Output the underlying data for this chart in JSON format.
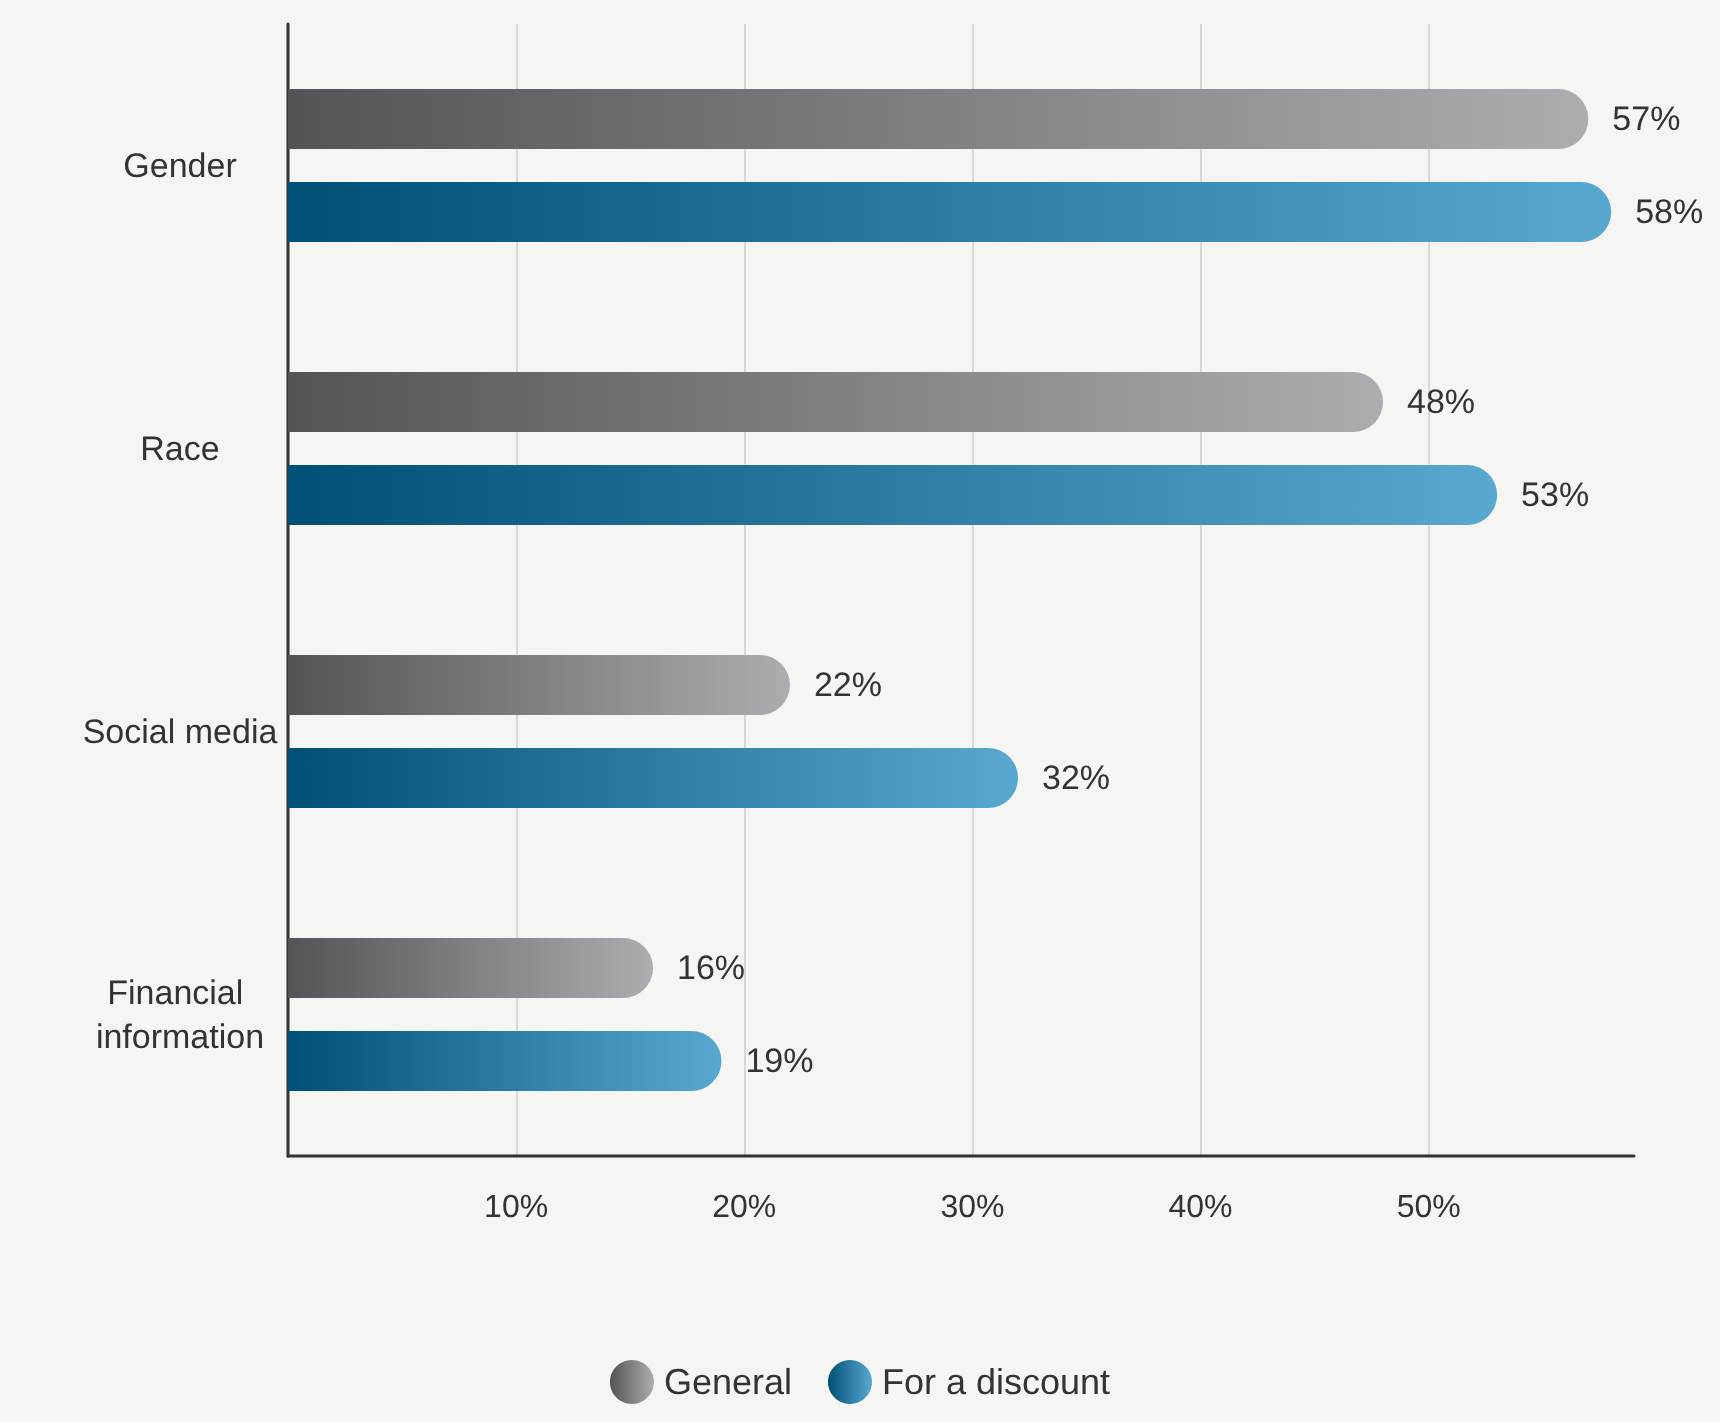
{
  "chart_data": {
    "type": "bar",
    "orientation": "horizontal",
    "categories": [
      "Gender",
      "Race",
      "Social media",
      "Financial information"
    ],
    "series": [
      {
        "name": "General",
        "color": "#808184",
        "values": [
          57,
          48,
          22,
          16
        ],
        "value_labels": [
          "57%",
          "48%",
          "22%",
          "16%"
        ]
      },
      {
        "name": "For a discount",
        "color": "#0079b5",
        "values": [
          58,
          53,
          32,
          19
        ],
        "value_labels": [
          "58%",
          "53%",
          "32%",
          "19%"
        ]
      }
    ],
    "xlim": [
      0,
      59
    ],
    "xticks": [
      {
        "value": 10,
        "label": "10%"
      },
      {
        "value": 20,
        "label": "20%"
      },
      {
        "value": 30,
        "label": "30%"
      },
      {
        "value": 40,
        "label": "40%"
      },
      {
        "value": 50,
        "label": "50%"
      }
    ],
    "grid": "x",
    "legend": "bottom"
  }
}
